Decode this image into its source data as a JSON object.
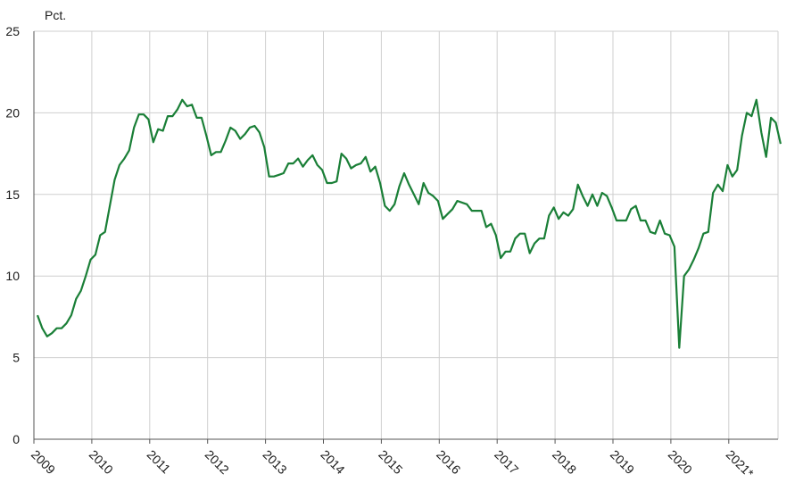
{
  "chart_data": {
    "type": "line",
    "unit_label": "Pct.",
    "xlabel": "",
    "ylabel": "",
    "ylim": [
      0,
      25
    ],
    "yticks": [
      0,
      5,
      10,
      15,
      20,
      25
    ],
    "grid": true,
    "year_ticks": [
      "2009",
      "2010",
      "2011",
      "2012",
      "2013",
      "2014",
      "2015",
      "2016",
      "2017",
      "2018",
      "2019",
      "2020",
      "2021*"
    ],
    "series": [
      {
        "color": "#1a7f37",
        "x_start": "2009-01",
        "values": [
          7.6,
          6.8,
          6.3,
          6.5,
          6.8,
          6.8,
          7.1,
          7.6,
          8.6,
          9.1,
          10.0,
          11.0,
          11.3,
          12.5,
          12.7,
          14.3,
          15.9,
          16.8,
          17.2,
          17.7,
          19.1,
          19.9,
          19.9,
          19.6,
          18.2,
          19.0,
          18.9,
          19.8,
          19.8,
          20.2,
          20.8,
          20.4,
          20.5,
          19.7,
          19.7,
          18.6,
          17.4,
          17.6,
          17.6,
          18.3,
          19.1,
          18.9,
          18.4,
          18.7,
          19.1,
          19.2,
          18.8,
          17.9,
          16.1,
          16.1,
          16.2,
          16.3,
          16.9,
          16.9,
          17.2,
          16.7,
          17.1,
          17.4,
          16.8,
          16.5,
          15.7,
          15.7,
          15.8,
          17.5,
          17.2,
          16.6,
          16.8,
          16.9,
          17.3,
          16.4,
          16.7,
          15.7,
          14.3,
          14.0,
          14.4,
          15.5,
          16.3,
          15.6,
          15.0,
          14.4,
          15.7,
          15.1,
          14.9,
          14.6,
          13.5,
          13.8,
          14.1,
          14.6,
          14.5,
          14.4,
          14.0,
          14.0,
          14.0,
          13.0,
          13.2,
          12.5,
          11.1,
          11.5,
          11.5,
          12.3,
          12.6,
          12.6,
          11.4,
          12.0,
          12.3,
          12.3,
          13.7,
          14.2,
          13.5,
          13.9,
          13.7,
          14.1,
          15.6,
          14.9,
          14.3,
          15.0,
          14.3,
          15.1,
          14.9,
          14.2,
          13.4,
          13.4,
          13.4,
          14.1,
          14.3,
          13.4,
          13.4,
          12.7,
          12.6,
          13.4,
          12.6,
          12.5,
          11.8,
          5.6,
          10.0,
          10.4,
          11.0,
          11.7,
          12.6,
          12.7,
          15.1,
          15.6,
          15.2,
          16.8,
          16.1,
          16.5,
          18.6,
          20.0,
          19.8,
          20.8,
          18.8,
          17.3,
          19.7,
          19.4,
          18.1
        ]
      }
    ]
  }
}
